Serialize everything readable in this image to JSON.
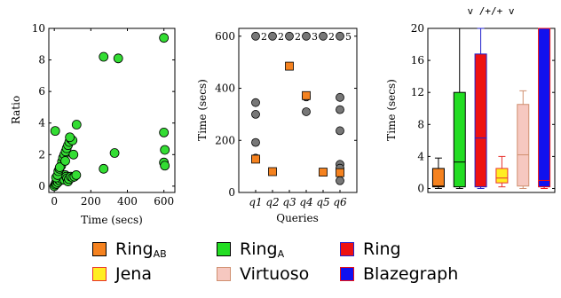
{
  "chart_data": [
    {
      "type": "scatter",
      "xlabel": "Time (secs)",
      "ylabel": "Ratio",
      "xlim": [
        -30,
        660
      ],
      "ylim": [
        -0.4,
        10
      ],
      "xticks": [
        "0",
        "200",
        "400",
        "600"
      ],
      "yticks": [
        "0",
        "2",
        "4",
        "6",
        "8",
        "10"
      ],
      "grid": false,
      "colors": {
        "marker": "#33dd33"
      },
      "points": [
        [
          0,
          0.0
        ],
        [
          5,
          0.1
        ],
        [
          8,
          0.2
        ],
        [
          12,
          0.15
        ],
        [
          15,
          0.3
        ],
        [
          20,
          0.25
        ],
        [
          25,
          0.4
        ],
        [
          30,
          0.35
        ],
        [
          35,
          0.5
        ],
        [
          40,
          0.45
        ],
        [
          45,
          0.6
        ],
        [
          50,
          0.55
        ],
        [
          55,
          0.4
        ],
        [
          60,
          0.7
        ],
        [
          65,
          0.6
        ],
        [
          70,
          0.5
        ],
        [
          75,
          0.3
        ],
        [
          80,
          0.45
        ],
        [
          90,
          0.6
        ],
        [
          100,
          0.55
        ],
        [
          110,
          0.6
        ],
        [
          120,
          0.7
        ],
        [
          10,
          0.55
        ],
        [
          18,
          0.7
        ],
        [
          22,
          0.95
        ],
        [
          28,
          1.1
        ],
        [
          38,
          1.3
        ],
        [
          42,
          1.55
        ],
        [
          48,
          1.8
        ],
        [
          55,
          2.0
        ],
        [
          62,
          2.2
        ],
        [
          68,
          2.4
        ],
        [
          75,
          2.6
        ],
        [
          82,
          2.8
        ],
        [
          90,
          3.0
        ],
        [
          100,
          2.9
        ],
        [
          105,
          2.0
        ],
        [
          85,
          3.1
        ],
        [
          122,
          3.9
        ],
        [
          5,
          3.5
        ],
        [
          30,
          1.2
        ],
        [
          60,
          1.6
        ],
        [
          270,
          1.1
        ],
        [
          330,
          2.1
        ],
        [
          270,
          8.2
        ],
        [
          350,
          8.1
        ],
        [
          600,
          9.4
        ],
        [
          600,
          3.4
        ],
        [
          605,
          2.3
        ],
        [
          600,
          1.5
        ],
        [
          605,
          1.3
        ]
      ]
    },
    {
      "type": "scatter",
      "xlabel": "Queries",
      "ylabel": "Time (secs)",
      "ylim": [
        0,
        630
      ],
      "categories": [
        "q1",
        "q2",
        "q3",
        "q4",
        "q5",
        "q6"
      ],
      "yticks": [
        "0",
        "200",
        "400",
        "600"
      ],
      "grid": false,
      "colors": {
        "gray": "#777777",
        "orange": "#f5821f"
      },
      "timeouts": [
        {
          "query": "q1",
          "y": 600,
          "count_label": "2"
        },
        {
          "query": "q2",
          "y": 600,
          "count_label": "2"
        },
        {
          "query": "q3",
          "y": 600,
          "count_label": "2"
        },
        {
          "query": "q4",
          "y": 600,
          "count_label": "3"
        },
        {
          "query": "q5",
          "y": 600,
          "count_label": "2"
        },
        {
          "query": "q6",
          "y": 600,
          "count_label": "5"
        }
      ],
      "gray_points": [
        {
          "query": "q1",
          "y": 345
        },
        {
          "query": "q1",
          "y": 300
        },
        {
          "query": "q1",
          "y": 192
        },
        {
          "query": "q1",
          "y": 132
        },
        {
          "query": "q4",
          "y": 367
        },
        {
          "query": "q4",
          "y": 310
        },
        {
          "query": "q6",
          "y": 365
        },
        {
          "query": "q6",
          "y": 318
        },
        {
          "query": "q6",
          "y": 237
        },
        {
          "query": "q6",
          "y": 108
        },
        {
          "query": "q6",
          "y": 93
        },
        {
          "query": "q6",
          "y": 45
        }
      ],
      "orange_points": [
        {
          "query": "q1",
          "y": 128
        },
        {
          "query": "q2",
          "y": 80
        },
        {
          "query": "q3",
          "y": 485
        },
        {
          "query": "q4",
          "y": 372
        },
        {
          "query": "q5",
          "y": 78
        },
        {
          "query": "q6",
          "y": 76
        }
      ]
    },
    {
      "type": "box",
      "ylabel": "Time (secs)",
      "ylim": [
        -0.5,
        20
      ],
      "yticks": [
        "0",
        "4",
        "8",
        "12",
        "16",
        "20"
      ],
      "top_annotation": "v /+/+ v",
      "grid": false,
      "series": [
        {
          "name": "Ring_AB",
          "whisker_low": 0,
          "q1": 0.2,
          "median": 0.3,
          "q3": 2.5,
          "whisker_high": 3.8,
          "fill": "#f5821f",
          "edge": "#000000"
        },
        {
          "name": "Ring_A",
          "whisker_low": 0,
          "q1": 0.2,
          "median": 3.3,
          "q3": 12.0,
          "whisker_high": 20,
          "fill": "#22dd22",
          "edge": "#000000"
        },
        {
          "name": "Ring",
          "whisker_low": 0,
          "q1": 0.2,
          "median": 6.3,
          "q3": 16.8,
          "whisker_high": 20,
          "fill": "#ee1111",
          "edge": "#2222cc"
        },
        {
          "name": "Jena",
          "whisker_low": 0.2,
          "q1": 0.7,
          "median": 1.3,
          "q3": 2.5,
          "whisker_high": 4.0,
          "fill": "#ffee22",
          "edge": "#e8312e"
        },
        {
          "name": "Virtuoso",
          "whisker_low": 0,
          "q1": 0.3,
          "median": 4.2,
          "q3": 10.5,
          "whisker_high": 12.2,
          "fill": "#f6c8c0",
          "edge": "#d09070"
        },
        {
          "name": "Blazegraph",
          "whisker_low": 0,
          "q1": 0.2,
          "median": 1.0,
          "q3": 20,
          "whisker_high": 20,
          "fill": "#1111ee",
          "edge": "#ee1111"
        }
      ]
    }
  ],
  "legend": [
    {
      "base": "Ring",
      "sub": "AB",
      "fill": "#f5821f",
      "edge": "#000000"
    },
    {
      "base": "Ring",
      "sub": "A",
      "fill": "#22dd22",
      "edge": "#000000"
    },
    {
      "base": "Ring",
      "sub": "",
      "fill": "#ee1111",
      "edge": "#2222cc"
    },
    {
      "base": "Jena",
      "sub": "",
      "fill": "#ffee22",
      "edge": "#e8312e"
    },
    {
      "base": "Virtuoso",
      "sub": "",
      "fill": "#f6c8c0",
      "edge": "#d09070"
    },
    {
      "base": "Blazegraph",
      "sub": "",
      "fill": "#1111ee",
      "edge": "#ee1111"
    }
  ]
}
